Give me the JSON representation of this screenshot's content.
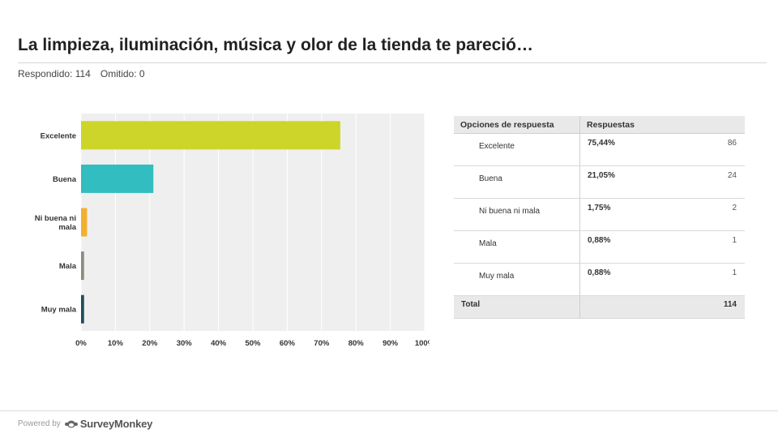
{
  "page": {
    "title": "La limpieza, iluminación, música y olor de la tienda te pareció…",
    "answered_label": "Respondido: 114",
    "skipped_label": "Omitido: 0"
  },
  "chart_data": {
    "type": "bar",
    "orientation": "horizontal",
    "categories": [
      "Excelente",
      "Buena",
      "Ni buena ni mala",
      "Mala",
      "Muy mala"
    ],
    "category_lines": [
      [
        "Excelente"
      ],
      [
        "Buena"
      ],
      [
        "Ni buena ni",
        "mala"
      ],
      [
        "Mala"
      ],
      [
        "Muy mala"
      ]
    ],
    "values": [
      75.44,
      21.05,
      1.75,
      0.88,
      0.88
    ],
    "colors": [
      "#cdd52a",
      "#32bdc0",
      "#f2b02e",
      "#8c8c7e",
      "#1f4e5f"
    ],
    "xlim": [
      0,
      100
    ],
    "x_ticks": [
      "0%",
      "10%",
      "20%",
      "30%",
      "40%",
      "50%",
      "60%",
      "70%",
      "80%",
      "90%",
      "100%"
    ],
    "grid": true,
    "background": "#efefef"
  },
  "table": {
    "headers": [
      "Opciones de respuesta",
      "Respuestas"
    ],
    "rows": [
      {
        "option": "Excelente",
        "percent": "75,44%",
        "count": "86"
      },
      {
        "option": "Buena",
        "percent": "21,05%",
        "count": "24"
      },
      {
        "option": "Ni buena ni mala",
        "percent": "1,75%",
        "count": "2"
      },
      {
        "option": "Mala",
        "percent": "0,88%",
        "count": "1"
      },
      {
        "option": "Muy mala",
        "percent": "0,88%",
        "count": "1"
      }
    ],
    "total_label": "Total",
    "total_value": "114"
  },
  "footer": {
    "powered_by": "Powered by",
    "brand": "SurveyMonkey",
    "logo_icon": "surveymonkey-logo-icon"
  }
}
